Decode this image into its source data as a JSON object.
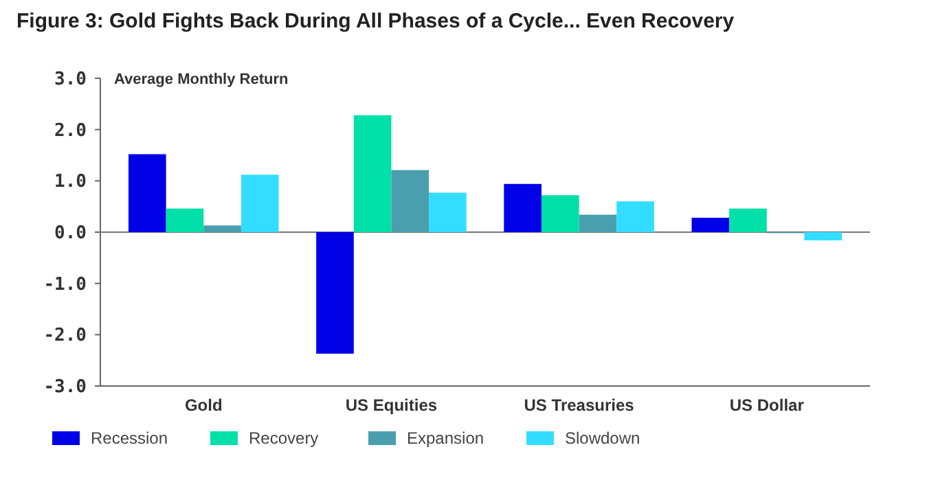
{
  "chart_data": {
    "type": "bar",
    "title": "Figure 3: Gold Fights Back During All Phases of a Cycle... Even Recovery",
    "ylabel": "Average Monthly Return",
    "categories": [
      "Gold",
      "US Equities",
      "US Treasuries",
      "US Dollar"
    ],
    "series": [
      {
        "name": "Recession",
        "color": "#0000e6",
        "values": [
          1.52,
          -2.37,
          0.94,
          0.28
        ]
      },
      {
        "name": "Recovery",
        "color": "#00e0a8",
        "values": [
          0.46,
          2.28,
          0.72,
          0.46
        ]
      },
      {
        "name": "Expansion",
        "color": "#4a9fae",
        "values": [
          0.13,
          1.21,
          0.34,
          -0.02
        ]
      },
      {
        "name": "Slowdown",
        "color": "#33ddff",
        "values": [
          1.12,
          0.77,
          0.6,
          -0.16
        ]
      }
    ],
    "ylim": [
      -3,
      3
    ],
    "yticks": [
      {
        "value": 3,
        "label": "3.0"
      },
      {
        "value": 2,
        "label": "2.0"
      },
      {
        "value": 1,
        "label": "1.0"
      },
      {
        "value": 0,
        "label": "0.0"
      },
      {
        "value": -1,
        "label": "-1.0"
      },
      {
        "value": -2,
        "label": "-2.0"
      },
      {
        "value": -3,
        "label": "-3.0"
      }
    ],
    "legend": "bottom"
  }
}
